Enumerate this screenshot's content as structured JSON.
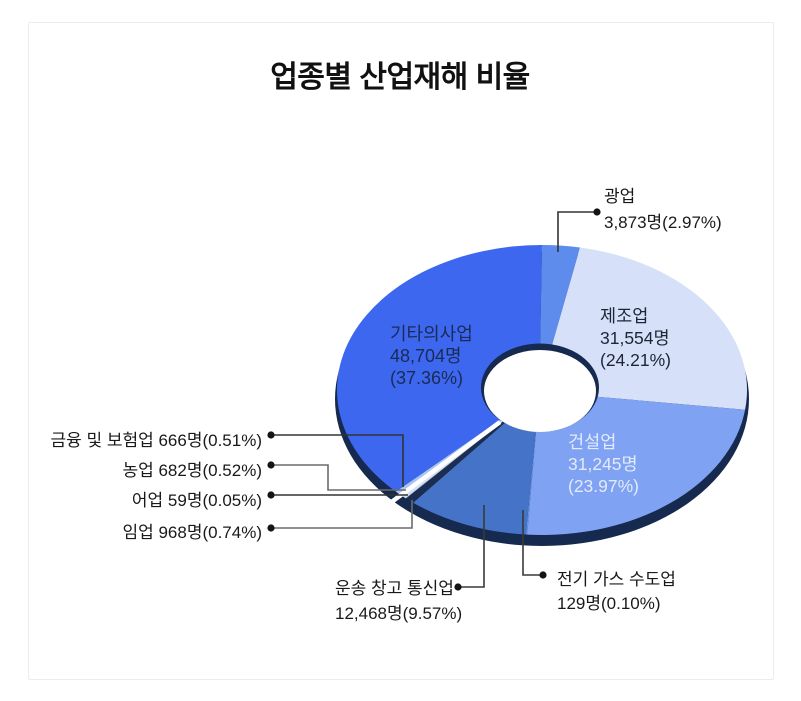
{
  "title": "업종별 산업재해 비율",
  "chart_data": {
    "type": "pie",
    "subtype": "donut-3d-exploded",
    "title": "업종별 산업재해 비율",
    "unit": "명",
    "direction": "clockwise",
    "start_angle_deg": 0,
    "colors": {
      "rim": "#16294E",
      "hole": "#FFFFFF",
      "gap": "#FFFFFF"
    },
    "slices": [
      {
        "key": "mining",
        "name": "광업",
        "value": 3873,
        "pct": 2.97,
        "color": "#5E8CEC",
        "detail": "3,873명(2.97%)"
      },
      {
        "key": "manufacturing",
        "name": "제조업",
        "value": 31554,
        "pct": 24.21,
        "color": "#D6E0F9",
        "value_text": "31,554명",
        "pct_text": "(24.21%)"
      },
      {
        "key": "construction",
        "name": "건설업",
        "value": 31245,
        "pct": 23.97,
        "color": "#7FA2F3",
        "value_text": "31,245명",
        "pct_text": "(23.97%)"
      },
      {
        "key": "electricity-gas-water",
        "name": "전기 가스 수도업",
        "value": 129,
        "pct": 0.1,
        "color": "#6C94E0",
        "detail": "129명(0.10%)"
      },
      {
        "key": "transport-warehouse-comm",
        "name": "운송 창고 통신업",
        "value": 12468,
        "pct": 9.57,
        "color": "#4573C8",
        "detail": "12,468명(9.57%)"
      },
      {
        "key": "forestry",
        "name": "임업",
        "value": 968,
        "pct": 0.74,
        "color": "#1C2D52",
        "combined": "임업 968명(0.74%)"
      },
      {
        "key": "fishing",
        "name": "어업",
        "value": 59,
        "pct": 0.05,
        "color": "#E8EEFC",
        "combined": "어업 59명(0.05%)"
      },
      {
        "key": "agriculture",
        "name": "농업",
        "value": 682,
        "pct": 0.52,
        "color": "#D4E0F8",
        "combined": "농업 682명(0.52%)"
      },
      {
        "key": "finance-insurance",
        "name": "금융 및 보험업",
        "value": 666,
        "pct": 0.51,
        "color": "#A7C4F4",
        "combined": "금융 및 보험업 666명(0.51%)"
      },
      {
        "key": "other-business",
        "name": "기타의사업",
        "value": 48704,
        "pct": 37.36,
        "color": "#3D67EF",
        "value_text": "48,704명",
        "pct_text": "(37.36%)"
      }
    ]
  }
}
